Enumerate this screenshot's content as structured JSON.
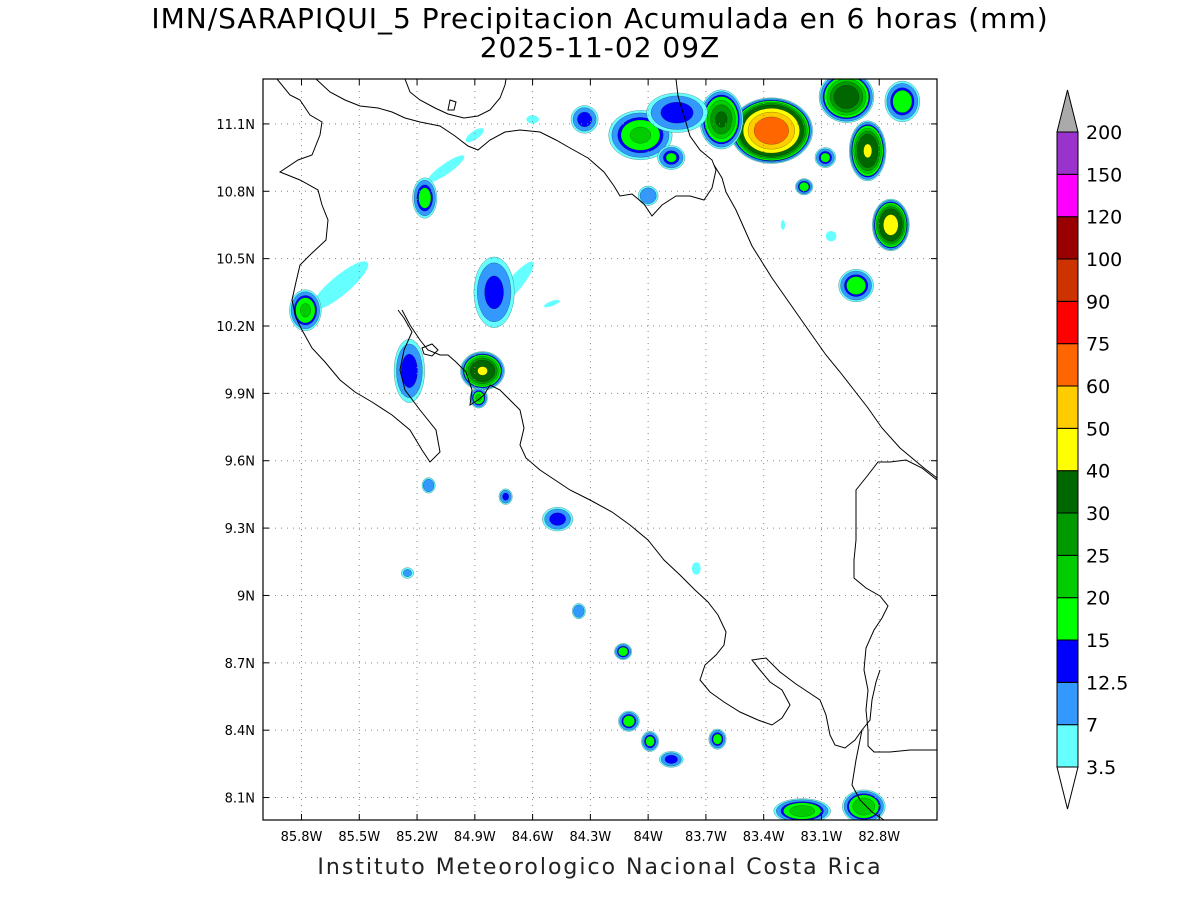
{
  "title": {
    "line1": "IMN/SARAPIQUI_5 Precipitacion Acumulada en 6 horas (mm)",
    "line2": "2025-11-02 09Z"
  },
  "footer": "Instituto Meteorologico Nacional Costa Rica",
  "map": {
    "lon_range": [
      -86.0,
      -82.5
    ],
    "lat_range": [
      8.0,
      11.3
    ],
    "lon_ticks": [
      {
        "value": -85.8,
        "label": "85.8W"
      },
      {
        "value": -85.5,
        "label": "85.5W"
      },
      {
        "value": -85.2,
        "label": "85.2W"
      },
      {
        "value": -84.9,
        "label": "84.9W"
      },
      {
        "value": -84.6,
        "label": "84.6W"
      },
      {
        "value": -84.3,
        "label": "84.3W"
      },
      {
        "value": -84.0,
        "label": "84W"
      },
      {
        "value": -83.7,
        "label": "83.7W"
      },
      {
        "value": -83.4,
        "label": "83.4W"
      },
      {
        "value": -83.1,
        "label": "83.1W"
      },
      {
        "value": -82.8,
        "label": "82.8W"
      }
    ],
    "lat_ticks": [
      {
        "value": 11.1,
        "label": "11.1N"
      },
      {
        "value": 10.8,
        "label": "10.8N"
      },
      {
        "value": 10.5,
        "label": "10.5N"
      },
      {
        "value": 10.2,
        "label": "10.2N"
      },
      {
        "value": 9.9,
        "label": "9.9N"
      },
      {
        "value": 9.6,
        "label": "9.6N"
      },
      {
        "value": 9.3,
        "label": "9.3N"
      },
      {
        "value": 9.0,
        "label": "9N"
      },
      {
        "value": 8.7,
        "label": "8.7N"
      },
      {
        "value": 8.4,
        "label": "8.4N"
      },
      {
        "value": 8.1,
        "label": "8.1N"
      }
    ],
    "grid": true
  },
  "legend": {
    "units": "mm",
    "levels": [
      {
        "label": "3.5",
        "color": "#66ffff"
      },
      {
        "label": "7",
        "color": "#3399ff"
      },
      {
        "label": "12.5",
        "color": "#0000ff"
      },
      {
        "label": "15",
        "color": "#00ff00"
      },
      {
        "label": "20",
        "color": "#00cc00"
      },
      {
        "label": "25",
        "color": "#009900"
      },
      {
        "label": "30",
        "color": "#006600"
      },
      {
        "label": "40",
        "color": "#ffff00"
      },
      {
        "label": "50",
        "color": "#ffcc00"
      },
      {
        "label": "60",
        "color": "#ff6600"
      },
      {
        "label": "75",
        "color": "#ff0000"
      },
      {
        "label": "90",
        "color": "#cc3300"
      },
      {
        "label": "100",
        "color": "#990000"
      },
      {
        "label": "120",
        "color": "#ff00ff"
      },
      {
        "label": "150",
        "color": "#9933cc"
      },
      {
        "label": "200",
        "color": "#f2f2f2"
      }
    ],
    "bin_colors": [
      "#66ffff",
      "#3399ff",
      "#0000ff",
      "#00ff00",
      "#00cc00",
      "#009900",
      "#006600",
      "#ffff00",
      "#ffcc00",
      "#ff6600",
      "#ff0000",
      "#cc3300",
      "#990000",
      "#ff00ff",
      "#9933cc",
      "#f2f2f2"
    ],
    "over_color": "#aaaaaa",
    "under_color": "#ffffff"
  },
  "precip_cells": [
    {
      "lon": -83.36,
      "lat": 11.07,
      "peak": 70,
      "rx": 0.22,
      "ry": 0.15
    },
    {
      "lon": -83.62,
      "lat": 11.12,
      "peak": 30,
      "rx": 0.12,
      "ry": 0.14
    },
    {
      "lon": -84.04,
      "lat": 11.05,
      "peak": 20,
      "rx": 0.18,
      "ry": 0.12
    },
    {
      "lon": -83.85,
      "lat": 11.15,
      "peak": 14,
      "rx": 0.18,
      "ry": 0.1
    },
    {
      "lon": -84.33,
      "lat": 11.12,
      "peak": 14,
      "rx": 0.08,
      "ry": 0.07
    },
    {
      "lon": -82.97,
      "lat": 11.22,
      "peak": 35,
      "rx": 0.15,
      "ry": 0.12
    },
    {
      "lon": -82.86,
      "lat": 10.98,
      "peak": 40,
      "rx": 0.1,
      "ry": 0.14
    },
    {
      "lon": -82.74,
      "lat": 10.65,
      "peak": 45,
      "rx": 0.1,
      "ry": 0.12
    },
    {
      "lon": -82.68,
      "lat": 11.2,
      "peak": 18,
      "rx": 0.1,
      "ry": 0.1
    },
    {
      "lon": -83.19,
      "lat": 10.82,
      "peak": 18,
      "rx": 0.05,
      "ry": 0.04
    },
    {
      "lon": -83.08,
      "lat": 10.95,
      "peak": 16,
      "rx": 0.06,
      "ry": 0.05
    },
    {
      "lon": -83.88,
      "lat": 10.95,
      "peak": 15,
      "rx": 0.08,
      "ry": 0.06
    },
    {
      "lon": -84.0,
      "lat": 10.78,
      "peak": 12,
      "rx": 0.06,
      "ry": 0.05
    },
    {
      "lon": -82.92,
      "lat": 10.38,
      "peak": 18,
      "rx": 0.1,
      "ry": 0.08
    },
    {
      "lon": -84.86,
      "lat": 10.0,
      "peak": 40,
      "rx": 0.12,
      "ry": 0.09
    },
    {
      "lon": -84.88,
      "lat": 9.88,
      "peak": 20,
      "rx": 0.05,
      "ry": 0.05
    },
    {
      "lon": -84.8,
      "lat": 10.35,
      "peak": 13,
      "rx": 0.12,
      "ry": 0.18
    },
    {
      "lon": -85.24,
      "lat": 10.0,
      "peak": 14,
      "rx": 0.09,
      "ry": 0.16
    },
    {
      "lon": -85.78,
      "lat": 10.27,
      "peak": 20,
      "rx": 0.09,
      "ry": 0.1
    },
    {
      "lon": -85.16,
      "lat": 10.77,
      "peak": 17,
      "rx": 0.07,
      "ry": 0.1
    },
    {
      "lon": -84.47,
      "lat": 9.34,
      "peak": 14,
      "rx": 0.09,
      "ry": 0.06
    },
    {
      "lon": -84.13,
      "lat": 8.75,
      "peak": 18,
      "rx": 0.05,
      "ry": 0.04
    },
    {
      "lon": -84.1,
      "lat": 8.44,
      "peak": 18,
      "rx": 0.06,
      "ry": 0.05
    },
    {
      "lon": -83.99,
      "lat": 8.35,
      "peak": 17,
      "rx": 0.05,
      "ry": 0.05
    },
    {
      "lon": -83.88,
      "lat": 8.27,
      "peak": 14,
      "rx": 0.07,
      "ry": 0.04
    },
    {
      "lon": -83.64,
      "lat": 8.36,
      "peak": 17,
      "rx": 0.05,
      "ry": 0.05
    },
    {
      "lon": -83.2,
      "lat": 8.04,
      "peak": 22,
      "rx": 0.16,
      "ry": 0.06
    },
    {
      "lon": -82.88,
      "lat": 8.06,
      "peak": 24,
      "rx": 0.12,
      "ry": 0.08
    },
    {
      "lon": -85.14,
      "lat": 9.49,
      "peak": 12,
      "rx": 0.04,
      "ry": 0.04
    },
    {
      "lon": -84.74,
      "lat": 9.44,
      "peak": 13,
      "rx": 0.04,
      "ry": 0.04
    },
    {
      "lon": -84.36,
      "lat": 8.93,
      "peak": 12,
      "rx": 0.04,
      "ry": 0.04
    },
    {
      "lon": -85.25,
      "lat": 9.1,
      "peak": 8,
      "rx": 0.04,
      "ry": 0.03
    }
  ],
  "light_bands": [
    {
      "lon": -85.6,
      "lat": 10.38,
      "rx": 0.35,
      "ry": 0.08,
      "angle": -40,
      "peak": 6
    },
    {
      "lon": -84.7,
      "lat": 10.38,
      "rx": 0.3,
      "ry": 0.06,
      "angle": -50,
      "peak": 6
    },
    {
      "lon": -85.05,
      "lat": 10.9,
      "rx": 0.25,
      "ry": 0.05,
      "angle": -35,
      "peak": 5
    },
    {
      "lon": -84.9,
      "lat": 11.05,
      "rx": 0.12,
      "ry": 0.04,
      "angle": -35,
      "peak": 5
    },
    {
      "lon": -83.75,
      "lat": 9.12,
      "rx": 0.05,
      "ry": 0.06,
      "angle": 0,
      "peak": 5
    },
    {
      "lon": -84.5,
      "lat": 10.3,
      "rx": 0.12,
      "ry": 0.03,
      "angle": -20,
      "peak": 4
    },
    {
      "lon": -83.05,
      "lat": 10.6,
      "rx": 0.06,
      "ry": 0.05,
      "angle": 0,
      "peak": 5
    },
    {
      "lon": -83.3,
      "lat": 10.65,
      "rx": 0.03,
      "ry": 0.06,
      "angle": 0,
      "peak": 4
    },
    {
      "lon": -84.6,
      "lat": 11.12,
      "rx": 0.07,
      "ry": 0.04,
      "angle": 0,
      "peak": 5
    }
  ]
}
